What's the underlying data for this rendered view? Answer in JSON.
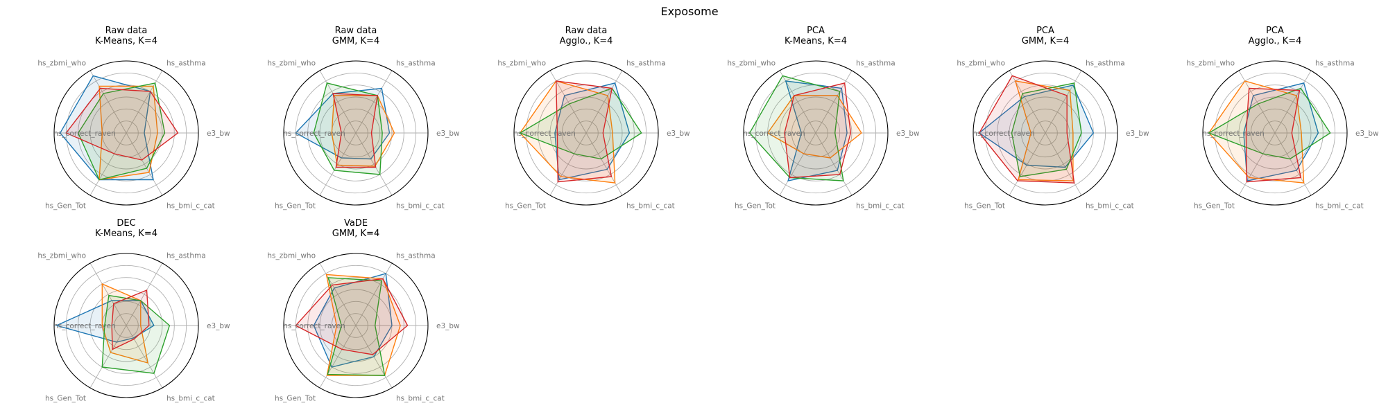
{
  "figure": {
    "title": "Exposome"
  },
  "colors": [
    "#1f77b4",
    "#ff7f0e",
    "#2ca02c",
    "#d62728"
  ],
  "chart_data": [
    {
      "type": "radar",
      "title": "Raw data\nK-Means, K=4",
      "axes": [
        "e3_bw",
        "hs_asthma",
        "hs_zbmi_who",
        "hs_correct_raven",
        "hs_Gen_Tot",
        "hs_bmi_c_cat"
      ],
      "rmax": 6,
      "rings": [
        1,
        2,
        3,
        4,
        5
      ],
      "series": [
        {
          "values": [
            1.5,
            4.0,
            5.5,
            5.5,
            4.5,
            4.5
          ]
        },
        {
          "values": [
            2.6,
            4.5,
            4.5,
            2.0,
            4.5,
            3.8
          ]
        },
        {
          "values": [
            3.2,
            4.8,
            3.8,
            4.0,
            4.5,
            3.4
          ]
        },
        {
          "values": [
            4.3,
            4.0,
            4.3,
            5.0,
            2.0,
            2.6
          ]
        }
      ]
    },
    {
      "type": "radar",
      "title": "Raw data\nGMM, K=4",
      "axes": [
        "e3_bw",
        "hs_asthma",
        "hs_zbmi_who",
        "hs_correct_raven",
        "hs_Gen_Tot",
        "hs_bmi_c_cat"
      ],
      "rmax": 6,
      "rings": [
        1,
        2,
        3,
        4,
        5
      ],
      "series": [
        {
          "values": [
            2.8,
            4.3,
            3.8,
            5.0,
            2.4,
            2.5
          ]
        },
        {
          "values": [
            3.2,
            3.6,
            3.6,
            2.0,
            3.1,
            3.2
          ]
        },
        {
          "values": [
            2.2,
            3.6,
            4.8,
            3.5,
            3.6,
            4.0
          ]
        },
        {
          "values": [
            1.3,
            3.6,
            3.8,
            1.2,
            3.3,
            3.3
          ]
        }
      ]
    },
    {
      "type": "radar",
      "title": "Raw data\nAgglo., K=4",
      "axes": [
        "e3_bw",
        "hs_asthma",
        "hs_zbmi_who",
        "hs_correct_raven",
        "hs_Gen_Tot",
        "hs_bmi_c_cat"
      ],
      "rmax": 6,
      "rings": [
        1,
        2,
        3,
        4,
        5
      ],
      "series": [
        {
          "values": [
            3.6,
            4.8,
            3.6,
            2.6,
            4.5,
            3.5
          ]
        },
        {
          "values": [
            2.2,
            3.6,
            5.0,
            5.5,
            4.2,
            4.8
          ]
        },
        {
          "values": [
            4.6,
            4.3,
            2.8,
            5.5,
            2.0,
            2.5
          ]
        },
        {
          "values": [
            1.4,
            4.3,
            5.0,
            2.4,
            4.7,
            4.2
          ]
        }
      ]
    },
    {
      "type": "radar",
      "title": "PCA\nK-Means, K=4",
      "axes": [
        "e3_bw",
        "hs_asthma",
        "hs_zbmi_who",
        "hs_correct_raven",
        "hs_Gen_Tot",
        "hs_bmi_c_cat"
      ],
      "rmax": 6,
      "rings": [
        1,
        2,
        3,
        4,
        5
      ],
      "series": [
        {
          "values": [
            2.6,
            4.3,
            5.0,
            1.2,
            4.6,
            3.6
          ]
        },
        {
          "values": [
            3.8,
            3.6,
            3.6,
            4.0,
            2.0,
            2.4
          ]
        },
        {
          "values": [
            1.6,
            4.0,
            5.5,
            5.5,
            4.3,
            4.6
          ]
        },
        {
          "values": [
            2.9,
            4.8,
            3.6,
            2.6,
            4.3,
            4.0
          ]
        }
      ]
    },
    {
      "type": "radar",
      "title": "PCA\nGMM, K=4",
      "axes": [
        "e3_bw",
        "hs_asthma",
        "hs_zbmi_who",
        "hs_correct_raven",
        "hs_Gen_Tot",
        "hs_bmi_c_cat"
      ],
      "rmax": 6,
      "rings": [
        1,
        2,
        3,
        4,
        5
      ],
      "series": [
        {
          "values": [
            4.0,
            4.6,
            3.5,
            5.5,
            3.1,
            3.3
          ]
        },
        {
          "values": [
            2.3,
            4.1,
            5.0,
            1.2,
            4.5,
            4.6
          ]
        },
        {
          "values": [
            3.0,
            4.8,
            3.8,
            2.8,
            4.2,
            3.5
          ]
        },
        {
          "values": [
            1.8,
            3.6,
            5.5,
            5.5,
            4.6,
            4.8
          ]
        }
      ]
    },
    {
      "type": "radar",
      "title": "PCA\nAgglo., K=4",
      "axes": [
        "e3_bw",
        "hs_asthma",
        "hs_zbmi_who",
        "hs_correct_raven",
        "hs_Gen_Tot",
        "hs_bmi_c_cat"
      ],
      "rmax": 6,
      "rings": [
        1,
        2,
        3,
        4,
        5
      ],
      "series": [
        {
          "values": [
            3.6,
            4.8,
            3.6,
            2.6,
            4.6,
            3.6
          ]
        },
        {
          "values": [
            2.2,
            3.6,
            5.0,
            5.5,
            4.3,
            4.8
          ]
        },
        {
          "values": [
            4.6,
            4.3,
            2.8,
            5.5,
            2.0,
            2.5
          ]
        },
        {
          "values": [
            1.4,
            4.1,
            4.3,
            2.4,
            4.7,
            4.3
          ]
        }
      ]
    },
    {
      "type": "radar",
      "title": "DEC\nK-Means, K=4",
      "axes": [
        "e3_bw",
        "hs_asthma",
        "hs_zbmi_who",
        "hs_correct_raven",
        "hs_Gen_Tot",
        "hs_bmi_c_cat"
      ],
      "rmax": 6,
      "rings": [
        1,
        2,
        3,
        4,
        5
      ],
      "series": [
        {
          "values": [
            2.3,
            2.4,
            2.4,
            5.8,
            1.6,
            1.2
          ]
        },
        {
          "values": [
            1.2,
            2.4,
            4.0,
            2.0,
            2.6,
            3.6
          ]
        },
        {
          "values": [
            3.6,
            2.4,
            2.9,
            1.8,
            4.0,
            4.6
          ]
        },
        {
          "values": [
            1.9,
            3.4,
            2.1,
            1.2,
            2.3,
            1.3
          ]
        }
      ]
    },
    {
      "type": "radar",
      "title": "VaDE\nGMM, K=4",
      "axes": [
        "e3_bw",
        "hs_asthma",
        "hs_zbmi_who",
        "hs_correct_raven",
        "hs_Gen_Tot",
        "hs_bmi_c_cat"
      ],
      "rmax": 6,
      "rings": [
        1,
        2,
        3,
        4,
        5
      ],
      "series": [
        {
          "values": [
            3.0,
            5.0,
            3.6,
            3.5,
            4.0,
            3.0
          ]
        },
        {
          "values": [
            3.7,
            4.5,
            4.9,
            1.6,
            4.8,
            4.8
          ]
        },
        {
          "values": [
            1.6,
            4.3,
            4.6,
            1.2,
            4.7,
            4.8
          ]
        },
        {
          "values": [
            4.3,
            4.5,
            3.9,
            5.0,
            2.3,
            2.8
          ]
        }
      ]
    }
  ]
}
